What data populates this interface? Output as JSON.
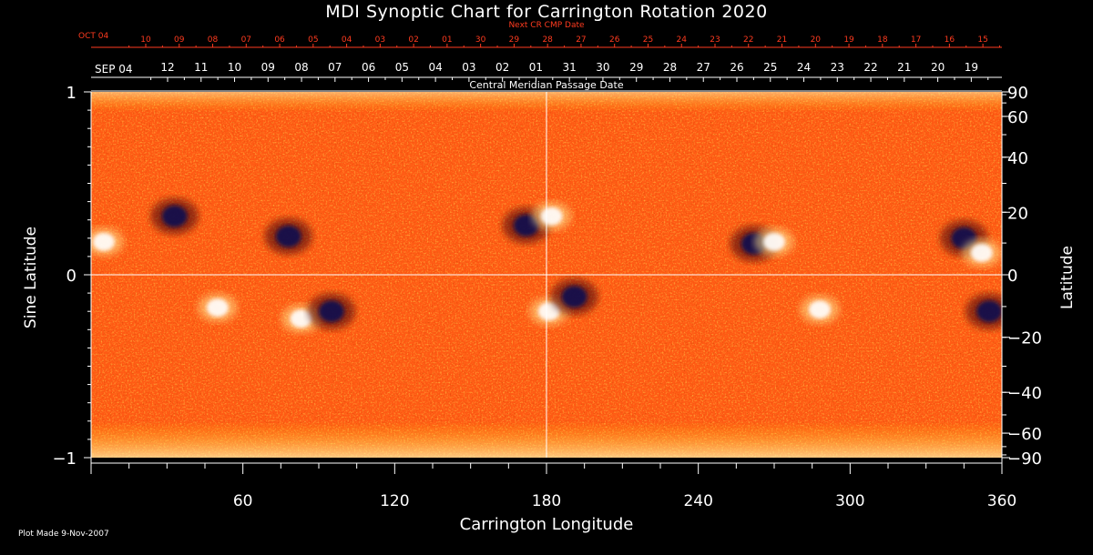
{
  "chart_data": {
    "type": "heatmap",
    "title": "MDI Synoptic Chart for Carrington Rotation 2020",
    "xlabel": "Carrington Longitude",
    "ylabel_left": "Sine Latitude",
    "ylabel_right": "Latitude",
    "xlim": [
      0,
      360
    ],
    "ylim": [
      -1,
      1
    ],
    "x_ticks": [
      "60",
      "120",
      "180",
      "240",
      "300",
      "360"
    ],
    "y_ticks_left": [
      {
        "label": "1",
        "value": 1
      },
      {
        "label": "0",
        "value": 0
      },
      {
        "label": "−1",
        "value": -1
      }
    ],
    "y_ticks_right": [
      "90",
      "60",
      "40",
      "20",
      "0",
      "−20",
      "−40",
      "−60",
      "−90"
    ],
    "top_axis": {
      "start_label": "SEP 04",
      "dates": [
        "12",
        "11",
        "10",
        "09",
        "08",
        "07",
        "06",
        "05",
        "04",
        "03",
        "02",
        "01",
        "31",
        "30",
        "29",
        "28",
        "27",
        "26",
        "25",
        "24",
        "23",
        "22",
        "21",
        "20",
        "19"
      ],
      "caption": "Central Meridian Passage Date"
    },
    "next_cr_axis": {
      "caption": "Next CR CMP Date",
      "start_label": "OCT 04",
      "dates": [
        "10",
        "09",
        "08",
        "07",
        "06",
        "05",
        "04",
        "03",
        "02",
        "01",
        "30",
        "29",
        "28",
        "27",
        "26",
        "25",
        "24",
        "23",
        "22",
        "21",
        "20",
        "19",
        "18",
        "17",
        "16",
        "15"
      ]
    },
    "active_regions": [
      {
        "lon": 83,
        "sinlat": -0.24,
        "polarity": "positive-bright"
      },
      {
        "lon": 95,
        "sinlat": -0.2,
        "polarity": "negative-dark"
      },
      {
        "lon": 33,
        "sinlat": 0.32,
        "polarity": "negative-dark"
      },
      {
        "lon": 78,
        "sinlat": 0.21,
        "polarity": "negative-dark"
      },
      {
        "lon": 172,
        "sinlat": 0.27,
        "polarity": "negative-dark"
      },
      {
        "lon": 182,
        "sinlat": 0.32,
        "polarity": "positive-bright"
      },
      {
        "lon": 181,
        "sinlat": -0.2,
        "polarity": "positive-bright"
      },
      {
        "lon": 191,
        "sinlat": -0.12,
        "polarity": "negative-dark"
      },
      {
        "lon": 262,
        "sinlat": 0.17,
        "polarity": "negative-dark"
      },
      {
        "lon": 270,
        "sinlat": 0.18,
        "polarity": "positive-bright"
      },
      {
        "lon": 288,
        "sinlat": -0.19,
        "polarity": "positive-bright"
      },
      {
        "lon": 345,
        "sinlat": 0.2,
        "polarity": "negative-dark"
      },
      {
        "lon": 352,
        "sinlat": 0.12,
        "polarity": "positive-bright"
      },
      {
        "lon": 355,
        "sinlat": -0.2,
        "polarity": "negative-dark"
      },
      {
        "lon": 50,
        "sinlat": -0.18,
        "polarity": "positive-bright"
      },
      {
        "lon": 5,
        "sinlat": 0.18,
        "polarity": "positive-bright"
      }
    ],
    "colors": {
      "background": "#ff5a14",
      "positive": "#ffffff",
      "negative": "#0a0a50",
      "annotation": "#ff3b1f"
    },
    "footer": "Plot Made  9-Nov-2007"
  }
}
